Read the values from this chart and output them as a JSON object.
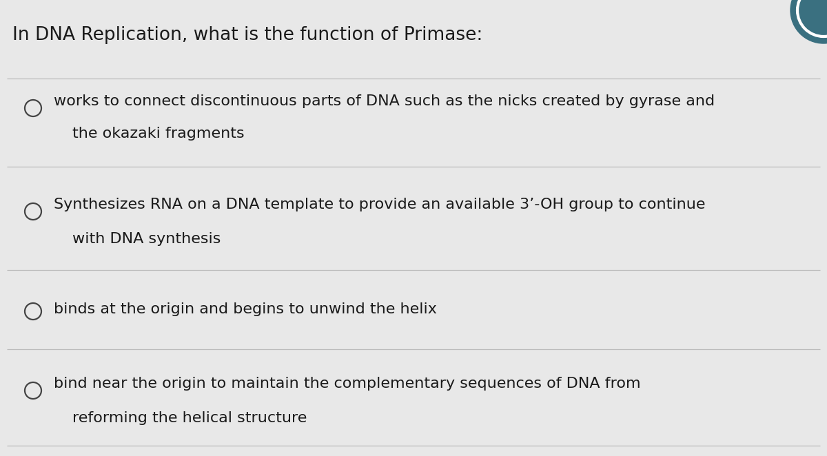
{
  "title": "In DNA Replication, what is the function of Primase:",
  "title_fontsize": 19,
  "background_color": "#e8e8e8",
  "text_color": "#1a1a1a",
  "line_color": "#bbbbbb",
  "circle_edge_color": "#444444",
  "teal_color": "#3a7080",
  "options": [
    {
      "line1": "works to connect discontinuous parts of DNA such as the nicks created by gyrase and",
      "line2": "the okazaki fragments"
    },
    {
      "line1": "Synthesizes RNA on a DNA template to provide an available 3’-OH group to continue",
      "line2": "with DNA synthesis"
    },
    {
      "line1": "binds at the origin and begins to unwind the helix",
      "line2": null
    },
    {
      "line1": "bind near the origin to maintain the complementary sequences of DNA from",
      "line2": "reforming the helical structure"
    }
  ],
  "option_fontsize": 16,
  "fig_width": 12.0,
  "fig_height": 6.62,
  "dpi": 100
}
